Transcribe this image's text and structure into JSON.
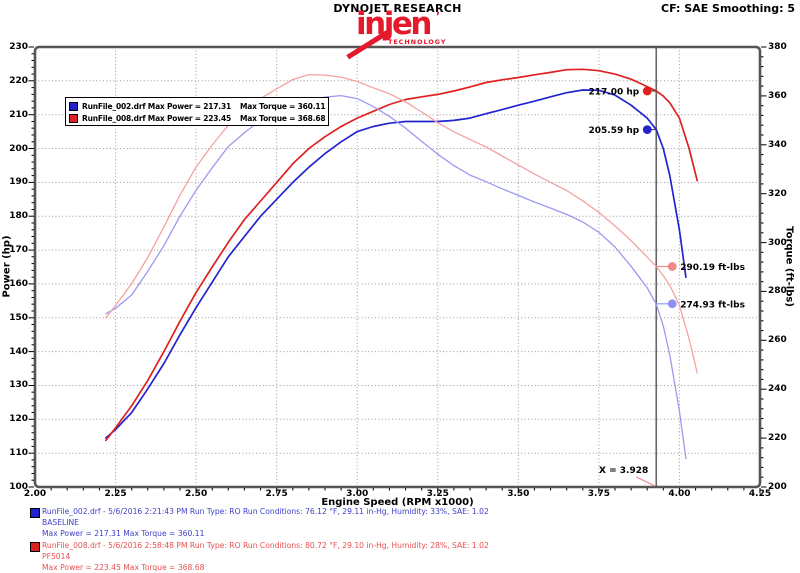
{
  "header": {
    "title": "DYNOJET RESEARCH",
    "cf_smoothing": "CF: SAE  Smoothing: 5"
  },
  "logo": {
    "word": "injen",
    "mark": "’",
    "sub": "TECHNOLOGY",
    "color": "#e4192b"
  },
  "legend": {
    "rows": [
      {
        "left": "RunFile_002.drf Max Power = 217.31",
        "right": "Max Torque = 360.11",
        "color": "#2222cc"
      },
      {
        "left": "RunFile_008.drf Max Power = 223.45",
        "right": "Max Torque = 368.68",
        "color": "#dd2222"
      }
    ]
  },
  "runs": [
    {
      "line1": "RunFile_002.drf - 5/6/2016 2:21:43 PM  Run Type: RO  Run Conditions: 76.12 °F, 29.11 in-Hg,  Humidity:  33%, SAE: 1.02",
      "line2": "BASELINE",
      "line3": "Max Power = 217.31  Max Torque = 360.11",
      "text_color": "#4040c8",
      "swatch_color": "#2222cc"
    },
    {
      "line1": "RunFile_008.drf - 5/6/2016 2:58:48 PM  Run Type: RO  Run Conditions: 80.72 °F, 29.10 in-Hg,  Humidity:  28%, SAE: 1.02",
      "line2": "PF5014",
      "line3": "Max Power = 223.45  Max Torque = 368.68",
      "text_color": "#e85050",
      "swatch_color": "#dd2222"
    }
  ],
  "chart_data": {
    "type": "line",
    "xlabel": "Engine Speed (RPM x1000)",
    "ylabel_left": "Power (hp)",
    "ylabel_right": "Torque (ft-lbs)",
    "x_range": [
      2.0,
      4.25
    ],
    "x_tick_step": 0.25,
    "x_minor_step": 0.05,
    "y_left_range": [
      100,
      230
    ],
    "y_left_tick_step": 10,
    "y_left_minor_step": 2,
    "y_right_range": [
      200,
      380
    ],
    "y_right_tick_step": 20,
    "y_right_minor_step": 4,
    "grid": true,
    "grid_color": "#999999",
    "frame_color": "#555555",
    "cursor": {
      "x": 3.928,
      "label": "X = 3.928",
      "line_color": "#666666",
      "label_line_color": "#f08a8a"
    },
    "series": [
      {
        "id": "runfile-002-power",
        "name": "RunFile_002.drf Power",
        "axis": "left",
        "color": "#2323cf",
        "width": 1.7,
        "x": [
          2.22,
          2.25,
          2.3,
          2.35,
          2.4,
          2.45,
          2.5,
          2.55,
          2.6,
          2.65,
          2.7,
          2.75,
          2.8,
          2.85,
          2.9,
          2.95,
          3.0,
          3.05,
          3.1,
          3.15,
          3.2,
          3.25,
          3.3,
          3.35,
          3.4,
          3.45,
          3.5,
          3.55,
          3.6,
          3.65,
          3.7,
          3.75,
          3.8,
          3.85,
          3.9,
          3.928,
          3.95,
          3.97,
          4.0,
          4.02
        ],
        "values": [
          114.5,
          117,
          122,
          129,
          136.5,
          145,
          153,
          160.5,
          168,
          174,
          180,
          185,
          190,
          194.5,
          198.5,
          202,
          205,
          206.5,
          207.5,
          208,
          208,
          208,
          208.3,
          209,
          210.3,
          211.5,
          212.8,
          214,
          215.3,
          216.5,
          217.3,
          217.2,
          215.8,
          212.8,
          209,
          205.6,
          200,
          192,
          176,
          162
        ]
      },
      {
        "id": "runfile-008-power",
        "name": "RunFile_008.drf Power",
        "axis": "left",
        "color": "#e02020",
        "width": 1.7,
        "x": [
          2.22,
          2.25,
          2.3,
          2.35,
          2.4,
          2.45,
          2.5,
          2.55,
          2.6,
          2.65,
          2.7,
          2.75,
          2.8,
          2.85,
          2.9,
          2.95,
          3.0,
          3.05,
          3.1,
          3.15,
          3.2,
          3.25,
          3.3,
          3.35,
          3.4,
          3.45,
          3.5,
          3.55,
          3.6,
          3.65,
          3.7,
          3.75,
          3.8,
          3.85,
          3.9,
          3.928,
          3.95,
          3.97,
          4.0,
          4.03,
          4.055
        ],
        "values": [
          113.8,
          117.5,
          124,
          131.5,
          140,
          149,
          157.5,
          165,
          172.3,
          179,
          184.5,
          190,
          195.5,
          200,
          203.5,
          206.5,
          209,
          211,
          213,
          214.5,
          215.3,
          216,
          217,
          218.2,
          219.5,
          220.3,
          221,
          221.8,
          222.5,
          223.3,
          223.4,
          223,
          222,
          220.5,
          218.3,
          217,
          215.5,
          213.5,
          209,
          200,
          190.5
        ]
      },
      {
        "id": "runfile-002-torque",
        "name": "RunFile_002.drf Torque",
        "axis": "right",
        "color": "#9a9af0",
        "width": 1.3,
        "x": [
          2.22,
          2.25,
          2.3,
          2.35,
          2.4,
          2.45,
          2.5,
          2.55,
          2.6,
          2.65,
          2.7,
          2.75,
          2.8,
          2.85,
          2.9,
          2.95,
          3.0,
          3.05,
          3.1,
          3.15,
          3.2,
          3.25,
          3.3,
          3.35,
          3.4,
          3.45,
          3.5,
          3.55,
          3.6,
          3.65,
          3.7,
          3.75,
          3.8,
          3.85,
          3.9,
          3.928,
          3.95,
          3.97,
          4.0,
          4.02
        ],
        "values": [
          270.9,
          273.1,
          278.6,
          288.3,
          298.7,
          310.8,
          321.4,
          330.6,
          339.3,
          344.9,
          350.1,
          353.3,
          356.4,
          358.4,
          359.5,
          360.1,
          358.9,
          355.6,
          351.6,
          346.8,
          341.4,
          336.1,
          331.5,
          327.6,
          324.9,
          322,
          319.3,
          316.6,
          314.1,
          311.5,
          308.4,
          304.2,
          298.2,
          290.3,
          281.5,
          274.9,
          265.9,
          254,
          231.1,
          211.6
        ]
      },
      {
        "id": "runfile-008-torque",
        "name": "RunFile_008.drf Torque",
        "axis": "right",
        "color": "#f4a2a2",
        "width": 1.3,
        "x": [
          2.22,
          2.25,
          2.3,
          2.35,
          2.4,
          2.45,
          2.5,
          2.55,
          2.6,
          2.65,
          2.7,
          2.75,
          2.8,
          2.85,
          2.9,
          2.95,
          3.0,
          3.05,
          3.1,
          3.15,
          3.2,
          3.25,
          3.3,
          3.35,
          3.4,
          3.45,
          3.5,
          3.55,
          3.6,
          3.65,
          3.7,
          3.75,
          3.8,
          3.85,
          3.9,
          3.928,
          3.95,
          3.97,
          4.0,
          4.03,
          4.055
        ],
        "values": [
          269.2,
          274.3,
          283.2,
          293.9,
          306.4,
          319.4,
          330.9,
          339.9,
          348,
          354.8,
          358.9,
          362.9,
          366.7,
          368.7,
          368.5,
          367.7,
          365.9,
          363.3,
          360.9,
          357.6,
          353.4,
          349,
          345.3,
          342.1,
          339.1,
          335.4,
          331.7,
          328.1,
          324.6,
          321.3,
          317.1,
          312.3,
          306.8,
          300.8,
          294,
          290.2,
          286.5,
          282.5,
          274.4,
          260.6,
          246.7
        ]
      }
    ],
    "annotations": [
      {
        "label": "217.00 hp",
        "axis": "left",
        "value": 217.0,
        "dot_color": "#e02020",
        "side": "left"
      },
      {
        "label": "205.59 hp",
        "axis": "left",
        "value": 205.59,
        "dot_color": "#2323cf",
        "side": "left"
      },
      {
        "label": "290.19 ft-lbs",
        "axis": "right",
        "value": 290.19,
        "dot_color": "#f08a8a",
        "side": "right"
      },
      {
        "label": "274.93 ft-lbs",
        "axis": "right",
        "value": 274.93,
        "dot_color": "#9090f0",
        "side": "right"
      }
    ]
  }
}
